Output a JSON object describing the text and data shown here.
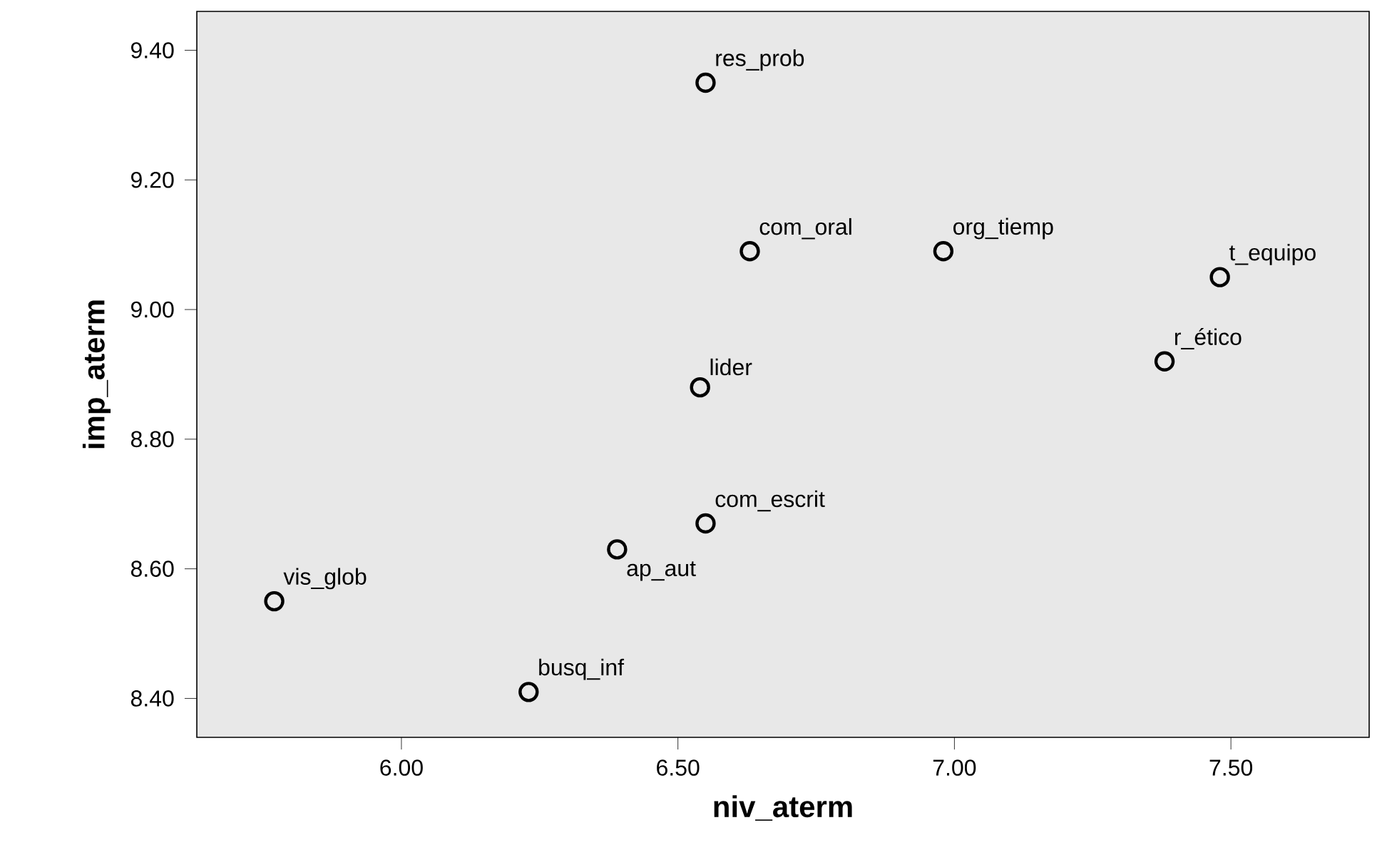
{
  "chart_data": {
    "type": "scatter",
    "xlabel": "niv_aterm",
    "ylabel": "imp_aterm",
    "x": [
      6.55,
      6.63,
      6.98,
      7.48,
      7.38,
      6.54,
      6.55,
      6.39,
      5.77,
      6.23
    ],
    "values": [
      9.35,
      9.09,
      9.09,
      9.05,
      8.92,
      8.88,
      8.67,
      8.63,
      8.55,
      8.41
    ],
    "color": "#000000",
    "marker": "circle",
    "xlim": [
      5.63,
      7.75
    ],
    "ylim": [
      8.34,
      9.46
    ],
    "xticks": [
      {
        "value": 6,
        "label": "6.00"
      },
      {
        "value": 6.5,
        "label": "6.50"
      },
      {
        "value": 7,
        "label": "7.00"
      },
      {
        "value": 7.5,
        "label": "7.50"
      }
    ],
    "yticks": [
      {
        "value": 8.4,
        "label": "8.40"
      },
      {
        "value": 8.6,
        "label": "8.60"
      },
      {
        "value": 8.8,
        "label": "8.80"
      },
      {
        "value": 9,
        "label": "9.00"
      },
      {
        "value": 9.2,
        "label": "9.20"
      },
      {
        "value": 9.4,
        "label": "9.40"
      }
    ],
    "grid": false,
    "annotations": [
      {
        "text": "res_prob",
        "x": 6.55,
        "y": 9.35
      },
      {
        "text": "com_oral",
        "x": 6.63,
        "y": 9.09
      },
      {
        "text": "org_tiemp",
        "x": 6.98,
        "y": 9.09
      },
      {
        "text": "t_equipo",
        "x": 7.48,
        "y": 9.05
      },
      {
        "text": "r_ético",
        "x": 7.38,
        "y": 8.92
      },
      {
        "text": "lider",
        "x": 6.54,
        "y": 8.88
      },
      {
        "text": "com_escrit",
        "x": 6.55,
        "y": 8.67
      },
      {
        "text": "ap_aut",
        "x": 6.39,
        "y": 8.63
      },
      {
        "text": "vis_glob",
        "x": 5.77,
        "y": 8.55
      },
      {
        "text": "busq_inf",
        "x": 6.23,
        "y": 8.41
      }
    ]
  }
}
